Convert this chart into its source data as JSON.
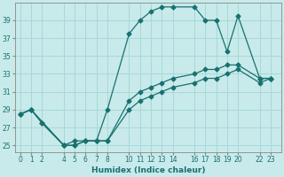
{
  "xlabel": "Humidex (Indice chaleur)",
  "bg_color": "#c8eaea",
  "grid_color": "#a8d8d8",
  "line_color": "#1a7070",
  "spine_color": "#888888",
  "xlim": [
    -0.5,
    24
  ],
  "ylim": [
    24.2,
    41.0
  ],
  "xticks": [
    0,
    1,
    2,
    4,
    5,
    6,
    7,
    8,
    10,
    11,
    12,
    13,
    14,
    16,
    17,
    18,
    19,
    20,
    22,
    23
  ],
  "yticks": [
    25,
    27,
    29,
    31,
    33,
    35,
    37,
    39
  ],
  "line1_x": [
    0,
    1,
    4,
    5,
    6,
    7,
    8,
    10,
    11,
    12,
    13,
    14,
    16,
    17,
    18,
    19,
    20,
    22,
    23
  ],
  "line1_y": [
    28.5,
    29.0,
    25.0,
    25.0,
    25.5,
    25.5,
    29.0,
    37.5,
    39.0,
    40.0,
    40.5,
    40.5,
    40.5,
    39.0,
    39.0,
    35.5,
    39.5,
    32.5,
    32.5
  ],
  "line2_x": [
    0,
    1,
    2,
    4,
    5,
    6,
    7,
    8,
    10,
    11,
    12,
    13,
    14,
    16,
    17,
    18,
    19,
    20,
    22,
    23
  ],
  "line2_y": [
    28.5,
    29.0,
    27.5,
    25.0,
    25.5,
    25.5,
    25.5,
    25.5,
    30.0,
    31.0,
    31.5,
    32.0,
    32.5,
    33.0,
    33.5,
    33.5,
    34.0,
    34.0,
    32.5,
    32.5
  ],
  "line3_x": [
    0,
    1,
    2,
    4,
    5,
    6,
    7,
    8,
    10,
    11,
    12,
    13,
    14,
    16,
    17,
    18,
    19,
    20,
    22,
    23
  ],
  "line3_y": [
    28.5,
    29.0,
    27.5,
    25.0,
    25.0,
    25.5,
    25.5,
    25.5,
    29.0,
    30.0,
    30.5,
    31.0,
    31.5,
    32.0,
    32.5,
    32.5,
    33.0,
    33.5,
    32.0,
    32.5
  ]
}
